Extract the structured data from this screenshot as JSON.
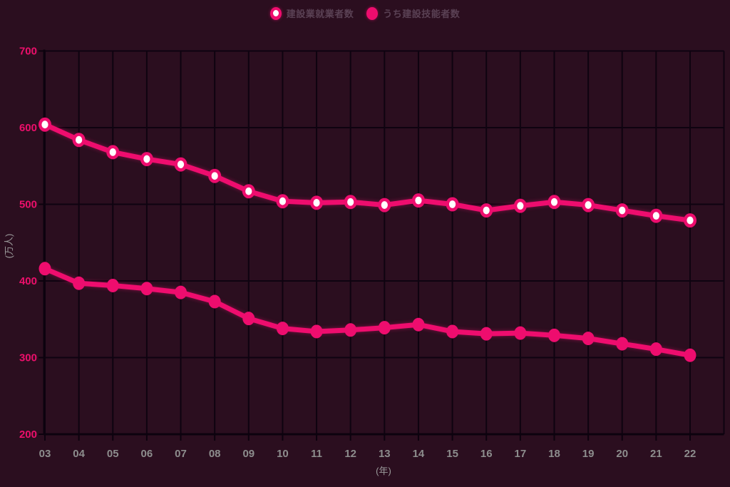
{
  "colors": {
    "background": "#2b0e1f",
    "grid": "#0e0310",
    "axis": "#0c020e",
    "line": "#ee0d6e",
    "marker_inner": "#ffffff",
    "y_tick_text": "#ec0f6b",
    "x_tick_text": "#8d8d8d",
    "unit_text": "#9b9b9b",
    "legend_text": "#5a4154"
  },
  "chart_data": {
    "type": "line",
    "categories": [
      "03",
      "04",
      "05",
      "06",
      "07",
      "08",
      "09",
      "10",
      "11",
      "12",
      "13",
      "14",
      "15",
      "16",
      "17",
      "18",
      "19",
      "20",
      "21",
      "22"
    ],
    "series": [
      {
        "name": "建設業就業者数",
        "marker": "ring",
        "values": [
          604,
          584,
          568,
          559,
          552,
          537,
          517,
          504,
          502,
          503,
          499,
          505,
          500,
          492,
          498,
          503,
          499,
          492,
          485,
          479
        ]
      },
      {
        "name": "うち建設技能者数",
        "marker": "solid",
        "values": [
          416,
          397,
          394,
          390,
          385,
          373,
          351,
          338,
          334,
          336,
          339,
          343,
          334,
          331,
          332,
          329,
          325,
          318,
          311,
          303
        ]
      }
    ],
    "title": "",
    "xlabel": "(年)",
    "ylabel": "(万人)",
    "ylim": [
      200,
      700
    ],
    "yticks": [
      200,
      300,
      400,
      500,
      600,
      700
    ],
    "grid": true,
    "legend_position": "top-center"
  }
}
